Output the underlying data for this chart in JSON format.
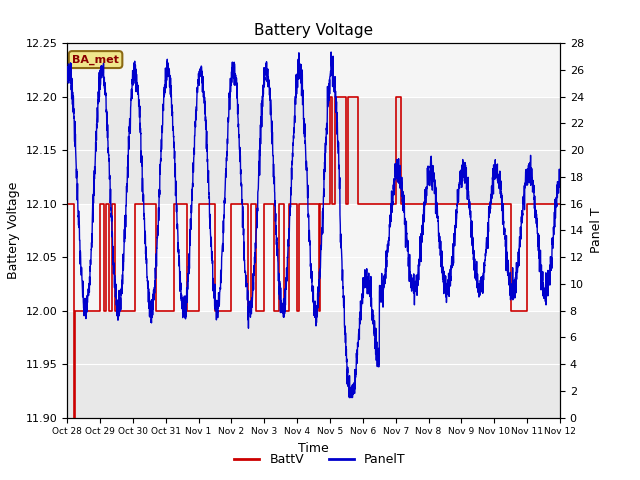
{
  "title": "Battery Voltage",
  "xlabel": "Time",
  "ylabel_left": "Battery Voltage",
  "ylabel_right": "Panel T",
  "ylim_left": [
    11.9,
    12.25
  ],
  "ylim_right": [
    0,
    28
  ],
  "background_color": "#ffffff",
  "plot_bg_light": "#f0f0f0",
  "plot_bg_dark": "#dcdcdc",
  "grid_color": "#ffffff",
  "annotation_text": "BA_met",
  "annotation_bg": "#f0e68c",
  "annotation_border": "#8b6914",
  "x_tick_labels": [
    "Oct 28",
    "Oct 29",
    "Oct 30",
    "Oct 31",
    "Nov 1",
    "Nov 2",
    "Nov 3",
    "Nov 4",
    "Nov 5",
    "Nov 6",
    "Nov 7",
    "Nov 8",
    "Nov 9",
    "Nov 10",
    "Nov 11",
    "Nov 12"
  ],
  "batt_color": "#cc0000",
  "panel_color": "#0000cc",
  "legend_labels": [
    "BattV",
    "PanelT"
  ],
  "title_fontsize": 11,
  "axis_fontsize": 9,
  "tick_fontsize": 8
}
